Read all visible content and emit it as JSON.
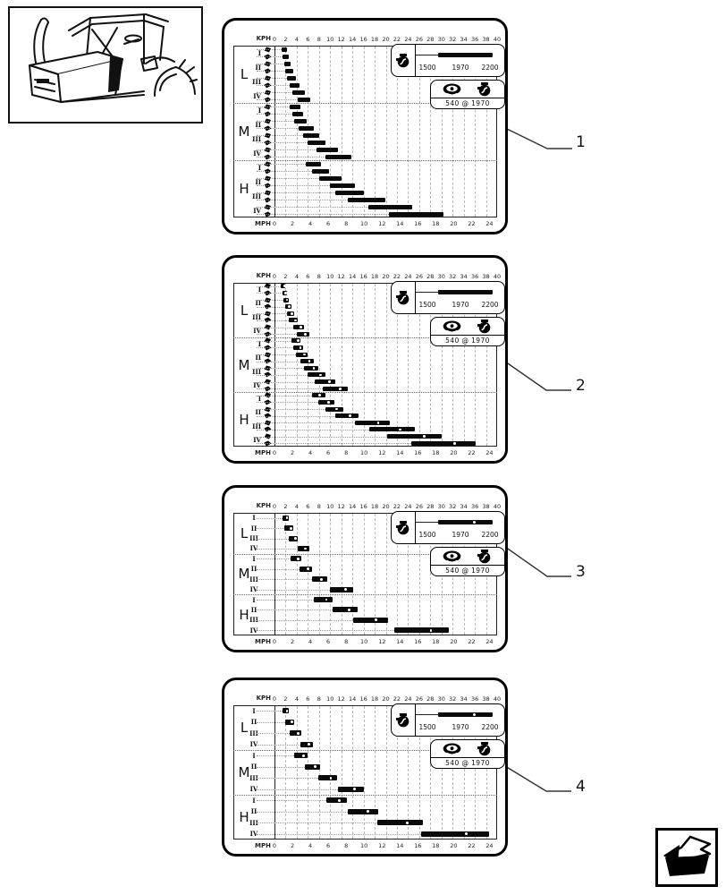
{
  "page": {
    "background": "#ffffff",
    "description": "tractor parts manual chart page"
  },
  "colors": {
    "ink": "#000000",
    "bar": "#0a0a0a",
    "grid": "#b9b9b9",
    "leader": "#999999",
    "panel_border": "#000000"
  },
  "callouts": [
    "1",
    "2",
    "3",
    "4"
  ],
  "axes": {
    "top_label": "KPH",
    "top_ticks": [
      0,
      2,
      4,
      6,
      8,
      10,
      12,
      14,
      16,
      18,
      20,
      22,
      24,
      26,
      28,
      30,
      32,
      34,
      36,
      38,
      40
    ],
    "bottom_label": "MPH",
    "bottom_ticks": [
      0,
      2,
      4,
      6,
      8,
      10,
      12,
      14,
      16,
      18,
      20,
      22,
      24
    ],
    "kph_range": [
      0,
      40
    ],
    "mph_range": [
      0,
      24
    ]
  },
  "legend": {
    "engine_rpm_scale": {
      "labels": [
        "1500",
        "1970",
        "2200"
      ],
      "min": 1500,
      "rated": 1970,
      "max": 2200
    },
    "pto_text": "540 @ 1970",
    "icons": [
      "engine-icon",
      "pto-icon"
    ]
  },
  "icons": {
    "engine": "engine-icon",
    "pto": "pto-icon",
    "splitter_top": "splitter-slow-icon",
    "splitter_bottom": "splitter-fast-icon",
    "nav": "page-arrow-icon",
    "tractor": "tractor-line-art"
  },
  "chart_data": [
    {
      "id": "1",
      "callout": "1",
      "type": "bar",
      "orientation": "horizontal-range",
      "unit": "KPH",
      "gear_icons": true,
      "bar_dots": false,
      "legend_dot": false,
      "row_groups": [
        "L",
        "M",
        "H"
      ],
      "gear_labels": [
        "I",
        "II",
        "III",
        "IV"
      ],
      "groups": [
        {
          "label": "L",
          "gears": [
            {
              "label": "I",
              "ranges": [
                [
                  1.3,
                  2.3
                ],
                [
                  1.5,
                  2.6
                ]
              ]
            },
            {
              "label": "II",
              "ranges": [
                [
                  1.7,
                  2.9
                ],
                [
                  2.0,
                  3.3
                ]
              ]
            },
            {
              "label": "III",
              "ranges": [
                [
                  2.3,
                  3.8
                ],
                [
                  2.7,
                  4.5
                ]
              ]
            },
            {
              "label": "IV",
              "ranges": [
                [
                  3.2,
                  5.4
                ],
                [
                  4.1,
                  6.4
                ]
              ]
            }
          ]
        },
        {
          "label": "M",
          "gears": [
            {
              "label": "I",
              "ranges": [
                [
                  2.8,
                  4.7
                ],
                [
                  3.2,
                  5.2
                ]
              ]
            },
            {
              "label": "II",
              "ranges": [
                [
                  3.6,
                  5.8
                ],
                [
                  4.4,
                  7.0
                ]
              ]
            },
            {
              "label": "III",
              "ranges": [
                [
                  5.2,
                  8.0
                ],
                [
                  5.9,
                  9.1
                ]
              ]
            },
            {
              "label": "IV",
              "ranges": [
                [
                  7.5,
                  11.4
                ],
                [
                  9.1,
                  13.8
                ]
              ]
            }
          ]
        },
        {
          "label": "H",
          "gears": [
            {
              "label": "I",
              "ranges": [
                [
                  5.7,
                  8.3
                ],
                [
                  6.7,
                  9.8
                ]
              ]
            },
            {
              "label": "II",
              "ranges": [
                [
                  8.0,
                  12.0
                ],
                [
                  9.9,
                  14.5
                ]
              ]
            },
            {
              "label": "III",
              "ranges": [
                [
                  10.9,
                  16.1
                ],
                [
                  13.2,
                  20.0
                ]
              ]
            },
            {
              "label": "IV",
              "ranges": [
                [
                  16.9,
                  24.7
                ],
                [
                  20.6,
                  30.3
                ]
              ]
            }
          ]
        }
      ]
    },
    {
      "id": "2",
      "callout": "2",
      "type": "bar",
      "orientation": "horizontal-range",
      "unit": "KPH",
      "gear_icons": true,
      "bar_dots": true,
      "legend_dot": false,
      "row_groups": [
        "L",
        "M",
        "H"
      ],
      "gear_labels": [
        "I",
        "II",
        "III",
        "IV"
      ],
      "groups": [
        {
          "label": "L",
          "gears": [
            {
              "label": "I",
              "ranges": [
                [
                  1.2,
                  2.0
                ],
                [
                  1.4,
                  2.2
                ]
              ]
            },
            {
              "label": "II",
              "ranges": [
                [
                  1.6,
                  2.5
                ],
                [
                  1.9,
                  3.0
                ]
              ]
            },
            {
              "label": "III",
              "ranges": [
                [
                  2.2,
                  3.5
                ],
                [
                  2.6,
                  4.2
                ]
              ]
            },
            {
              "label": "IV",
              "ranges": [
                [
                  3.4,
                  5.3
                ],
                [
                  4.0,
                  6.2
                ]
              ]
            }
          ]
        },
        {
          "label": "M",
          "gears": [
            {
              "label": "I",
              "ranges": [
                [
                  3.0,
                  4.7
                ],
                [
                  3.4,
                  5.2
                ]
              ]
            },
            {
              "label": "II",
              "ranges": [
                [
                  3.9,
                  6.0
                ],
                [
                  4.6,
                  7.0
                ]
              ]
            },
            {
              "label": "III",
              "ranges": [
                [
                  5.3,
                  7.9
                ],
                [
                  6.0,
                  9.2
                ]
              ]
            },
            {
              "label": "IV",
              "ranges": [
                [
                  7.2,
                  11.0
                ],
                [
                  8.7,
                  13.2
                ]
              ]
            }
          ]
        },
        {
          "label": "H",
          "gears": [
            {
              "label": "I",
              "ranges": [
                [
                  6.8,
                  9.1
                ],
                [
                  7.9,
                  10.8
                ]
              ]
            },
            {
              "label": "II",
              "ranges": [
                [
                  9.1,
                  12.4
                ],
                [
                  10.9,
                  15.1
                ]
              ]
            },
            {
              "label": "III",
              "ranges": [
                [
                  14.4,
                  20.8
                ],
                [
                  17.1,
                  25.2
                ]
              ]
            },
            {
              "label": "IV",
              "ranges": [
                [
                  20.3,
                  30.1
                ],
                [
                  24.6,
                  36.1
                ]
              ]
            }
          ]
        }
      ]
    },
    {
      "id": "3",
      "callout": "3",
      "type": "bar",
      "orientation": "horizontal-range",
      "unit": "KPH",
      "gear_icons": false,
      "bar_dots": true,
      "legend_dot": true,
      "row_groups": [
        "L",
        "M",
        "H"
      ],
      "gear_labels": [
        "I",
        "II",
        "III",
        "IV"
      ],
      "groups": [
        {
          "label": "L",
          "gears": [
            {
              "label": "I",
              "ranges": [
                [
                  1.4,
                  2.5
                ]
              ]
            },
            {
              "label": "II",
              "ranges": [
                [
                  1.8,
                  3.3
                ]
              ]
            },
            {
              "label": "III",
              "ranges": [
                [
                  2.5,
                  4.2
                ]
              ]
            },
            {
              "label": "IV",
              "ranges": [
                [
                  4.2,
                  6.2
                ]
              ]
            }
          ]
        },
        {
          "label": "M",
          "gears": [
            {
              "label": "I",
              "ranges": [
                [
                  2.9,
                  4.8
                ]
              ]
            },
            {
              "label": "II",
              "ranges": [
                [
                  4.5,
                  6.7
                ]
              ]
            },
            {
              "label": "III",
              "ranges": [
                [
                  6.7,
                  9.4
                ]
              ]
            },
            {
              "label": "IV",
              "ranges": [
                [
                  9.9,
                  14.2
                ]
              ]
            }
          ]
        },
        {
          "label": "H",
          "gears": [
            {
              "label": "I",
              "ranges": [
                [
                  7.1,
                  10.4
                ]
              ]
            },
            {
              "label": "II",
              "ranges": [
                [
                  10.4,
                  15.0
                ]
              ]
            },
            {
              "label": "III",
              "ranges": [
                [
                  14.2,
                  20.4
                ]
              ]
            },
            {
              "label": "IV",
              "ranges": [
                [
                  21.5,
                  31.4
                ]
              ]
            }
          ]
        }
      ]
    },
    {
      "id": "4",
      "callout": "4",
      "type": "bar",
      "orientation": "horizontal-range",
      "unit": "KPH",
      "gear_icons": false,
      "bar_dots": true,
      "legend_dot": true,
      "row_groups": [
        "L",
        "M",
        "H"
      ],
      "gear_labels": [
        "I",
        "II",
        "III",
        "IV"
      ],
      "groups": [
        {
          "label": "L",
          "gears": [
            {
              "label": "I",
              "ranges": [
                [
                  1.4,
                  2.5
                ]
              ]
            },
            {
              "label": "II",
              "ranges": [
                [
                  1.9,
                  3.5
                ]
              ]
            },
            {
              "label": "III",
              "ranges": [
                [
                  2.8,
                  4.8
                ]
              ]
            },
            {
              "label": "IV",
              "ranges": [
                [
                  4.6,
                  6.9
                ]
              ]
            }
          ]
        },
        {
          "label": "M",
          "gears": [
            {
              "label": "I",
              "ranges": [
                [
                  3.6,
                  5.9
                ]
              ]
            },
            {
              "label": "II",
              "ranges": [
                [
                  5.5,
                  8.2
                ]
              ]
            },
            {
              "label": "III",
              "ranges": [
                [
                  7.8,
                  11.3
                ]
              ]
            },
            {
              "label": "IV",
              "ranges": [
                [
                  11.4,
                  16.0
                ]
              ]
            }
          ]
        },
        {
          "label": "H",
          "gears": [
            {
              "label": "I",
              "ranges": [
                [
                  9.3,
                  13.0
                ]
              ]
            },
            {
              "label": "II",
              "ranges": [
                [
                  13.1,
                  18.7
                ]
              ]
            },
            {
              "label": "III",
              "ranges": [
                [
                  18.4,
                  26.6
                ]
              ]
            },
            {
              "label": "IV",
              "ranges": [
                [
                  26.4,
                  38.5
                ]
              ]
            }
          ]
        }
      ]
    }
  ]
}
